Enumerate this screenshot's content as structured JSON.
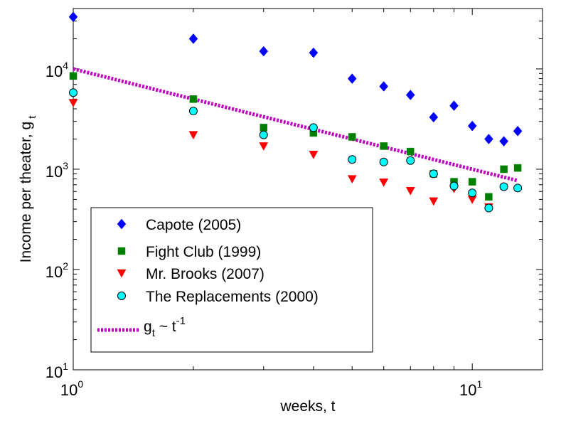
{
  "chart_data": {
    "type": "scatter",
    "x_scale": "log",
    "y_scale": "log",
    "xlabel": "weeks, t",
    "ylabel_main": "Income per theater, g",
    "ylabel_sub": "t",
    "xlim": [
      1,
      15
    ],
    "ylim": [
      10,
      40000
    ],
    "x_ticks": [
      {
        "value": 1,
        "base": "10",
        "exp": "0"
      },
      {
        "value": 10,
        "base": "10",
        "exp": "1"
      }
    ],
    "y_ticks": [
      {
        "value": 10,
        "base": "10",
        "exp": "1"
      },
      {
        "value": 100,
        "base": "10",
        "exp": "2"
      },
      {
        "value": 1000,
        "base": "10",
        "exp": "3"
      },
      {
        "value": 10000,
        "base": "10",
        "exp": "4"
      }
    ],
    "legend_position": "bottom-left",
    "series": [
      {
        "name": "Capote (2005)",
        "marker": "diamond",
        "color": "#0000ff",
        "edge": "#0000ff",
        "x": [
          1,
          2,
          3,
          4,
          5,
          6,
          7,
          8,
          9,
          10,
          11,
          12,
          13
        ],
        "y": [
          33000,
          20000,
          15000,
          14500,
          8000,
          6700,
          5500,
          3300,
          4300,
          2700,
          2000,
          1900,
          2400
        ]
      },
      {
        "name": "Fight Club (1999)",
        "marker": "square",
        "color": "#008000",
        "edge": "#008000",
        "x": [
          1,
          2,
          3,
          4,
          5,
          6,
          7,
          8,
          9,
          10,
          11,
          12,
          13
        ],
        "y": [
          8500,
          5000,
          2600,
          2300,
          2100,
          1700,
          1500,
          900,
          750,
          750,
          530,
          1000,
          1030
        ]
      },
      {
        "name": "Mr. Brooks (2007)",
        "marker": "triangle-down",
        "color": "#ff0000",
        "edge": "#ff0000",
        "x": [
          1,
          2,
          3,
          4,
          5,
          6,
          7,
          8,
          9,
          10,
          11
        ],
        "y": [
          4600,
          2200,
          1700,
          1400,
          800,
          740,
          610,
          480,
          640,
          500,
          420
        ]
      },
      {
        "name": "The Replacements (2000)",
        "marker": "circle",
        "color": "#00ffff",
        "edge": "#000000",
        "x": [
          1,
          2,
          3,
          4,
          5,
          6,
          7,
          8,
          9,
          10,
          11,
          12,
          13
        ],
        "y": [
          5800,
          3800,
          2200,
          2600,
          1250,
          1180,
          1220,
          900,
          680,
          580,
          410,
          670,
          650
        ]
      }
    ],
    "fit_line": {
      "name_main": "g",
      "name_sub": "t",
      "name_mid": " ~ t",
      "name_sup": "-1",
      "label": "g_t ~ t^-1",
      "color": "#c000c0",
      "style": "dotted",
      "x": [
        1,
        13
      ],
      "y": [
        10000,
        769
      ]
    }
  }
}
